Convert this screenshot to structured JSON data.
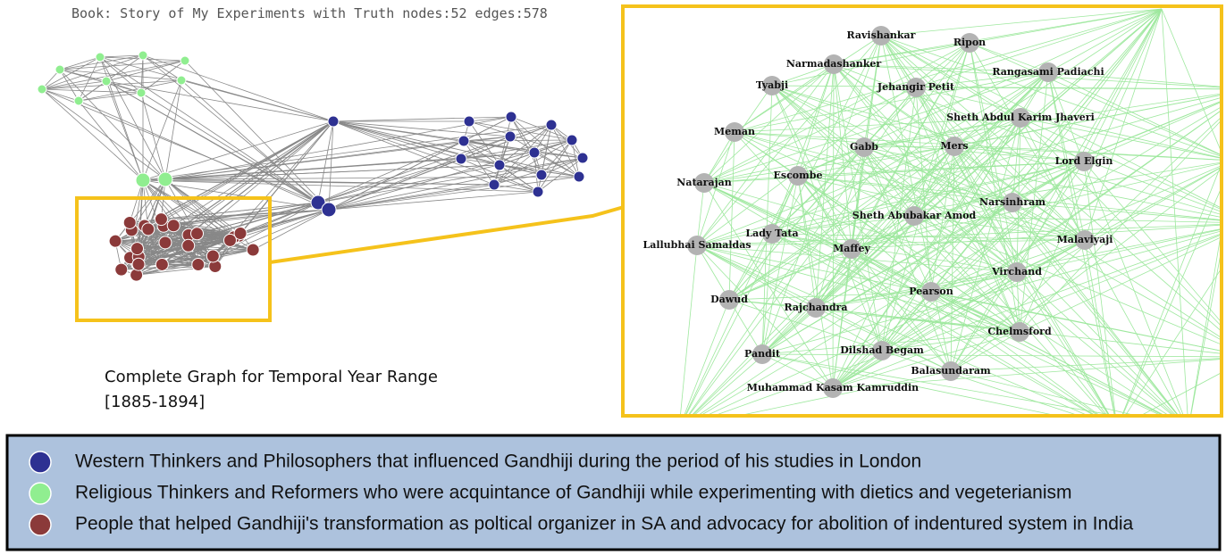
{
  "header": {
    "title": "Book: Story of My Experiments with Truth nodes:52 edges:578"
  },
  "caption": {
    "lines": [
      "Complete Graph for Temporal Year Range",
      "[1885-1894]"
    ]
  },
  "zoom": {
    "nodes": [
      {
        "label": "Ravishankar"
      },
      {
        "label": "Ripon"
      },
      {
        "label": "Narmadashanker"
      },
      {
        "label": "Rangasami Padiachi"
      },
      {
        "label": "Tyabji"
      },
      {
        "label": "Jehangir Petit"
      },
      {
        "label": "Sheth Abdul Karim Jhaveri"
      },
      {
        "label": "Meman"
      },
      {
        "label": "Gabb"
      },
      {
        "label": "Mers"
      },
      {
        "label": "Lord Elgin"
      },
      {
        "label": "Escombe"
      },
      {
        "label": "Natarajan"
      },
      {
        "label": "Narsinhram"
      },
      {
        "label": "Sheth Abubakar Amod"
      },
      {
        "label": "Lady Tata"
      },
      {
        "label": "Malaviyaji"
      },
      {
        "label": "Lallubhai Samaldas"
      },
      {
        "label": "Maffey"
      },
      {
        "label": "Virchand"
      },
      {
        "label": "Pearson"
      },
      {
        "label": "Dawud"
      },
      {
        "label": "Rajchandra"
      },
      {
        "label": "Chelmsford"
      },
      {
        "label": "Dilshad Begam"
      },
      {
        "label": "Pandit"
      },
      {
        "label": "Balasundaram"
      },
      {
        "label": "Muhammad Kasam Kamruddin"
      }
    ]
  },
  "legend": {
    "items": [
      {
        "label": "Western Thinkers and Philosophers that influenced Gandhiji during the period of his studies in London"
      },
      {
        "label": "Religious Thinkers and Reformers who were acquintance of Gandhiji while experimenting with dietics and vegeterianism"
      },
      {
        "label": "People that helped Gandhiji's transformation as poltical organizer in SA and advocacy for abolition of indentured system in India"
      }
    ]
  }
}
